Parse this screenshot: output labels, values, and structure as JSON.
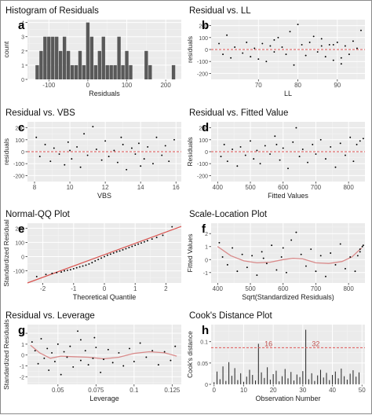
{
  "chart_data": [
    {
      "id": "a",
      "panel_letter": "a",
      "type": "histogram",
      "title": "Histogram of Residuals",
      "xlabel": "Residuals",
      "ylabel": "count",
      "xlim": [
        -155,
        240
      ],
      "ylim": [
        0,
        4.2
      ],
      "xticks": [
        -100,
        0,
        100,
        200
      ],
      "yticks": [
        0,
        1,
        2,
        3,
        4
      ],
      "bin_width": 10,
      "bins": [
        {
          "x": -130,
          "count": 1
        },
        {
          "x": -120,
          "count": 2
        },
        {
          "x": -110,
          "count": 3
        },
        {
          "x": -100,
          "count": 3
        },
        {
          "x": -90,
          "count": 3
        },
        {
          "x": -80,
          "count": 3
        },
        {
          "x": -70,
          "count": 2
        },
        {
          "x": -60,
          "count": 3
        },
        {
          "x": -50,
          "count": 2
        },
        {
          "x": -40,
          "count": 1
        },
        {
          "x": -30,
          "count": 1
        },
        {
          "x": -20,
          "count": 2
        },
        {
          "x": -10,
          "count": 1
        },
        {
          "x": 0,
          "count": 4
        },
        {
          "x": 10,
          "count": 3
        },
        {
          "x": 20,
          "count": 1
        },
        {
          "x": 30,
          "count": 2
        },
        {
          "x": 40,
          "count": 3
        },
        {
          "x": 50,
          "count": 1
        },
        {
          "x": 60,
          "count": 1
        },
        {
          "x": 70,
          "count": 1
        },
        {
          "x": 80,
          "count": 3
        },
        {
          "x": 90,
          "count": 1
        },
        {
          "x": 100,
          "count": 2
        },
        {
          "x": 110,
          "count": 1
        },
        {
          "x": 150,
          "count": 2
        },
        {
          "x": 160,
          "count": 1
        },
        {
          "x": 220,
          "count": 1
        }
      ]
    },
    {
      "id": "b",
      "panel_letter": "b",
      "type": "scatter",
      "title": "Residual vs. LL",
      "xlabel": "LL",
      "ylabel": "residuals",
      "xlim": [
        58,
        97
      ],
      "ylim": [
        -250,
        250
      ],
      "xticks": [
        70,
        80,
        90
      ],
      "yticks": [
        -200,
        -100,
        0,
        100,
        200
      ],
      "hline": 0,
      "points": [
        [
          60,
          50
        ],
        [
          61,
          -40
        ],
        [
          63,
          -70
        ],
        [
          64,
          20
        ],
        [
          66,
          -30
        ],
        [
          67,
          60
        ],
        [
          68,
          -60
        ],
        [
          69,
          10
        ],
        [
          70,
          -80
        ],
        [
          71,
          50
        ],
        [
          72,
          -100
        ],
        [
          73,
          30
        ],
        [
          74,
          80
        ],
        [
          75,
          100
        ],
        [
          76,
          20
        ],
        [
          77,
          -40
        ],
        [
          78,
          150
        ],
        [
          79,
          -130
        ],
        [
          80,
          210
        ],
        [
          81,
          40
        ],
        [
          82,
          -50
        ],
        [
          83,
          60
        ],
        [
          84,
          110
        ],
        [
          85,
          -20
        ],
        [
          86,
          30
        ],
        [
          87,
          -60
        ],
        [
          88,
          40
        ],
        [
          89,
          -90
        ],
        [
          90,
          60
        ],
        [
          91,
          -120
        ],
        [
          92,
          30
        ],
        [
          93,
          -40
        ],
        [
          94,
          70
        ],
        [
          95,
          10
        ],
        [
          96,
          160
        ],
        [
          62,
          120
        ],
        [
          74,
          -20
        ],
        [
          86,
          90
        ],
        [
          89,
          40
        ],
        [
          91,
          -70
        ]
      ]
    },
    {
      "id": "c",
      "panel_letter": "c",
      "type": "scatter",
      "title": "Residual vs. VBS",
      "xlabel": "VBS",
      "ylabel": "residuals",
      "xlim": [
        7.6,
        16.3
      ],
      "ylim": [
        -250,
        250
      ],
      "xticks": [
        8,
        10,
        12,
        14,
        16
      ],
      "yticks": [
        -200,
        -100,
        0,
        100,
        200
      ],
      "hline": 0,
      "points": [
        [
          8.1,
          120
        ],
        [
          8.3,
          -40
        ],
        [
          8.6,
          60
        ],
        [
          8.9,
          -80
        ],
        [
          9.1,
          30
        ],
        [
          9.4,
          -20
        ],
        [
          9.7,
          -110
        ],
        [
          9.9,
          80
        ],
        [
          10.1,
          -60
        ],
        [
          10.4,
          40
        ],
        [
          10.6,
          -130
        ],
        [
          10.8,
          150
        ],
        [
          11.0,
          -30
        ],
        [
          11.3,
          210
        ],
        [
          11.5,
          20
        ],
        [
          11.8,
          -70
        ],
        [
          12.0,
          90
        ],
        [
          12.2,
          -40
        ],
        [
          12.5,
          10
        ],
        [
          12.7,
          -90
        ],
        [
          13.0,
          60
        ],
        [
          13.2,
          -150
        ],
        [
          13.5,
          30
        ],
        [
          13.7,
          -20
        ],
        [
          13.9,
          70
        ],
        [
          14.2,
          -60
        ],
        [
          14.4,
          40
        ],
        [
          14.7,
          -100
        ],
        [
          14.9,
          120
        ],
        [
          15.2,
          -30
        ],
        [
          15.4,
          50
        ],
        [
          15.6,
          -80
        ],
        [
          15.9,
          100
        ],
        [
          10.0,
          10
        ],
        [
          12.9,
          120
        ],
        [
          14.0,
          -120
        ]
      ]
    },
    {
      "id": "d",
      "panel_letter": "d",
      "type": "scatter",
      "title": "Residual vs. Fitted Value",
      "xlabel": "Fitted Values",
      "ylabel": "Residuals",
      "xlim": [
        380,
        850
      ],
      "ylim": [
        -250,
        250
      ],
      "xticks": [
        400,
        500,
        600,
        700,
        800
      ],
      "yticks": [
        -200,
        -100,
        0,
        100,
        200
      ],
      "hline": 0,
      "points": [
        [
          410,
          -40
        ],
        [
          420,
          60
        ],
        [
          430,
          -80
        ],
        [
          445,
          20
        ],
        [
          460,
          -120
        ],
        [
          470,
          40
        ],
        [
          485,
          -30
        ],
        [
          500,
          90
        ],
        [
          510,
          -60
        ],
        [
          520,
          10
        ],
        [
          530,
          -100
        ],
        [
          545,
          50
        ],
        [
          560,
          -20
        ],
        [
          575,
          130
        ],
        [
          590,
          -70
        ],
        [
          600,
          30
        ],
        [
          615,
          -140
        ],
        [
          630,
          80
        ],
        [
          640,
          200
        ],
        [
          650,
          -40
        ],
        [
          660,
          20
        ],
        [
          675,
          -90
        ],
        [
          690,
          60
        ],
        [
          700,
          -20
        ],
        [
          715,
          100
        ],
        [
          730,
          -60
        ],
        [
          745,
          40
        ],
        [
          760,
          -130
        ],
        [
          775,
          70
        ],
        [
          790,
          -30
        ],
        [
          805,
          120
        ],
        [
          815,
          -80
        ],
        [
          825,
          60
        ],
        [
          835,
          90
        ],
        [
          845,
          110
        ],
        [
          580,
          60
        ]
      ]
    },
    {
      "id": "e",
      "panel_letter": "e",
      "type": "qq",
      "title": "Normal-QQ Plot",
      "xlabel": "Theoretical Quantile",
      "ylabel": "Standardized Residual",
      "xlim": [
        -2.5,
        2.5
      ],
      "ylim": [
        -185,
        235
      ],
      "xticks": [
        -2,
        -1,
        0,
        1,
        2
      ],
      "yticks": [
        -100,
        0,
        100,
        200
      ],
      "reference_line": {
        "slope": 85,
        "intercept": 0
      },
      "points": [
        [
          -2.2,
          -140
        ],
        [
          -1.9,
          -125
        ],
        [
          -1.7,
          -118
        ],
        [
          -1.55,
          -112
        ],
        [
          -1.4,
          -108
        ],
        [
          -1.3,
          -100
        ],
        [
          -1.2,
          -96
        ],
        [
          -1.1,
          -92
        ],
        [
          -1.0,
          -85
        ],
        [
          -0.9,
          -78
        ],
        [
          -0.8,
          -72
        ],
        [
          -0.7,
          -66
        ],
        [
          -0.6,
          -60
        ],
        [
          -0.5,
          -52
        ],
        [
          -0.4,
          -42
        ],
        [
          -0.3,
          -30
        ],
        [
          -0.2,
          -20
        ],
        [
          -0.1,
          -10
        ],
        [
          0.0,
          0
        ],
        [
          0.1,
          10
        ],
        [
          0.2,
          18
        ],
        [
          0.3,
          26
        ],
        [
          0.4,
          34
        ],
        [
          0.5,
          40
        ],
        [
          0.6,
          48
        ],
        [
          0.7,
          56
        ],
        [
          0.8,
          64
        ],
        [
          0.9,
          72
        ],
        [
          1.0,
          80
        ],
        [
          1.1,
          88
        ],
        [
          1.2,
          96
        ],
        [
          1.3,
          104
        ],
        [
          1.4,
          112
        ],
        [
          1.55,
          124
        ],
        [
          1.7,
          135
        ],
        [
          1.9,
          150
        ],
        [
          2.2,
          210
        ]
      ]
    },
    {
      "id": "f",
      "panel_letter": "f",
      "type": "scatter",
      "title": "Scale-Location Plot",
      "xlabel": "Sqrt(Standardized Residuals)",
      "ylabel": "Fitted Values",
      "xlim": [
        380,
        850
      ],
      "ylim": [
        -1.8,
        2.8
      ],
      "xticks": [
        400,
        500,
        600,
        700,
        800
      ],
      "yticks": [
        -1,
        0,
        1,
        2
      ],
      "smooth": [
        [
          400,
          1.0
        ],
        [
          440,
          0.3
        ],
        [
          480,
          -0.1
        ],
        [
          520,
          -0.25
        ],
        [
          560,
          -0.2
        ],
        [
          600,
          0.0
        ],
        [
          630,
          0.1
        ],
        [
          660,
          0.05
        ],
        [
          700,
          -0.25
        ],
        [
          740,
          -0.3
        ],
        [
          780,
          -0.15
        ],
        [
          810,
          0.2
        ],
        [
          840,
          0.9
        ]
      ],
      "points": [
        [
          405,
          1.3
        ],
        [
          415,
          0.2
        ],
        [
          430,
          -0.4
        ],
        [
          445,
          0.9
        ],
        [
          460,
          -0.9
        ],
        [
          475,
          0.4
        ],
        [
          490,
          -0.6
        ],
        [
          505,
          0.3
        ],
        [
          520,
          -1.2
        ],
        [
          535,
          0.6
        ],
        [
          550,
          -0.3
        ],
        [
          565,
          1.1
        ],
        [
          580,
          -0.8
        ],
        [
          595,
          0.2
        ],
        [
          610,
          -1.0
        ],
        [
          625,
          1.5
        ],
        [
          640,
          2.1
        ],
        [
          655,
          0.4
        ],
        [
          670,
          -0.5
        ],
        [
          685,
          0.8
        ],
        [
          700,
          -0.9
        ],
        [
          715,
          0.3
        ],
        [
          730,
          -1.3
        ],
        [
          745,
          0.5
        ],
        [
          760,
          -0.4
        ],
        [
          775,
          1.2
        ],
        [
          790,
          -0.7
        ],
        [
          805,
          0.2
        ],
        [
          820,
          -0.9
        ],
        [
          835,
          0.6
        ],
        [
          845,
          1.1
        ],
        [
          835,
          0.8
        ],
        [
          842,
          1.0
        ],
        [
          828,
          0.3
        ],
        [
          600,
          0.9
        ],
        [
          540,
          0.1
        ]
      ]
    },
    {
      "id": "g",
      "panel_letter": "g",
      "type": "scatter",
      "title": "Residual vs. Leverage",
      "xlabel": "Leverage",
      "ylabel": "Standardized Residuals",
      "xlim": [
        0.03,
        0.131
      ],
      "ylim": [
        -2.7,
        2.8
      ],
      "xticks": [
        0.05,
        0.075,
        0.1,
        0.125
      ],
      "yticks": [
        -2,
        -1,
        0,
        1,
        2
      ],
      "smooth": [
        [
          0.032,
          0.9
        ],
        [
          0.038,
          0.2
        ],
        [
          0.045,
          -0.3
        ],
        [
          0.052,
          -0.1
        ],
        [
          0.06,
          -0.15
        ],
        [
          0.07,
          -0.2
        ],
        [
          0.08,
          -0.35
        ],
        [
          0.09,
          -0.2
        ],
        [
          0.1,
          0.15
        ],
        [
          0.11,
          0.3
        ],
        [
          0.12,
          0.2
        ],
        [
          0.128,
          -0.1
        ]
      ],
      "points": [
        [
          0.033,
          1.2
        ],
        [
          0.035,
          0.4
        ],
        [
          0.037,
          -0.8
        ],
        [
          0.039,
          1.5
        ],
        [
          0.041,
          -0.3
        ],
        [
          0.043,
          0.6
        ],
        [
          0.044,
          -1.4
        ],
        [
          0.046,
          0.2
        ],
        [
          0.048,
          -0.6
        ],
        [
          0.05,
          1.0
        ],
        [
          0.052,
          -1.8
        ],
        [
          0.054,
          0.3
        ],
        [
          0.056,
          -0.2
        ],
        [
          0.058,
          0.8
        ],
        [
          0.06,
          -1.1
        ],
        [
          0.063,
          2.2
        ],
        [
          0.065,
          -0.5
        ],
        [
          0.068,
          0.4
        ],
        [
          0.07,
          -0.9
        ],
        [
          0.073,
          -0.3
        ],
        [
          0.075,
          0.7
        ],
        [
          0.078,
          -1.6
        ],
        [
          0.08,
          -0.4
        ],
        [
          0.083,
          0.5
        ],
        [
          0.086,
          -0.7
        ],
        [
          0.09,
          0.2
        ],
        [
          0.093,
          -1.0
        ],
        [
          0.097,
          0.6
        ],
        [
          0.1,
          -0.6
        ],
        [
          0.104,
          1.1
        ],
        [
          0.108,
          -0.2
        ],
        [
          0.112,
          0.4
        ],
        [
          0.116,
          -0.9
        ],
        [
          0.12,
          0.3
        ],
        [
          0.124,
          -0.5
        ],
        [
          0.127,
          0.8
        ],
        [
          0.065,
          1.4
        ],
        [
          0.074,
          1.6
        ]
      ]
    },
    {
      "id": "h",
      "panel_letter": "h",
      "type": "bar",
      "title": "Cook's Distance Plot",
      "xlabel": "Observation Number",
      "ylabel": "Cook's distance",
      "xlim": [
        -1,
        51
      ],
      "ylim": [
        0,
        0.14
      ],
      "xticks": [
        0,
        10,
        20,
        30,
        40,
        50
      ],
      "yticks": [
        0.0,
        0.05,
        0.1
      ],
      "hline": 0.086,
      "annotations": [
        {
          "x": 16,
          "text": "16"
        },
        {
          "x": 32,
          "text": "32"
        }
      ],
      "values": [
        0.005,
        0.03,
        0.012,
        0.042,
        0.008,
        0.052,
        0.02,
        0.038,
        0.01,
        0.026,
        0.006,
        0.018,
        0.034,
        0.022,
        0.009,
        0.095,
        0.028,
        0.015,
        0.04,
        0.011,
        0.024,
        0.032,
        0.007,
        0.019,
        0.036,
        0.014,
        0.029,
        0.009,
        0.023,
        0.017,
        0.031,
        0.128,
        0.012,
        0.026,
        0.008,
        0.021,
        0.034,
        0.016,
        0.027,
        0.01,
        0.022,
        0.03,
        0.014,
        0.037,
        0.019,
        0.011,
        0.025,
        0.033,
        0.018,
        0.028
      ]
    }
  ]
}
